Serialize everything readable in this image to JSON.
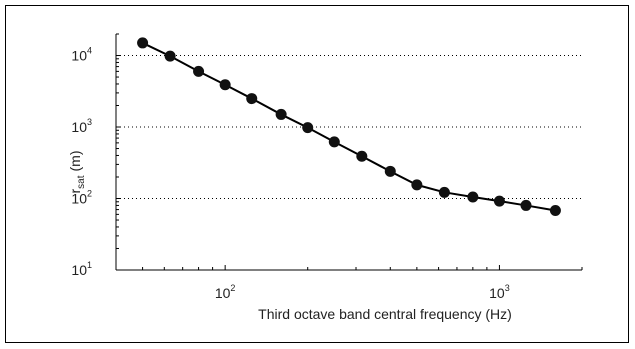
{
  "chart_data": {
    "type": "line",
    "title": "",
    "xlabel": "Third octave band central frequency (Hz)",
    "ylabel_main": "r",
    "ylabel_sub": "sat",
    "ylabel_unit": "(m)",
    "xscale": "log",
    "yscale": "log",
    "xlim": [
      40,
      2000
    ],
    "ylim": [
      10,
      20000
    ],
    "grid": "horizontal dotted",
    "x_ticks": [
      {
        "base": "10",
        "exp": "2",
        "value": 100
      },
      {
        "base": "10",
        "exp": "3",
        "value": 1000
      }
    ],
    "y_ticks": [
      {
        "base": "10",
        "exp": "1",
        "value": 10
      },
      {
        "base": "10",
        "exp": "2",
        "value": 100
      },
      {
        "base": "10",
        "exp": "3",
        "value": 1000
      },
      {
        "base": "10",
        "exp": "4",
        "value": 10000
      }
    ],
    "series": [
      {
        "x": [
          50,
          63,
          80,
          100,
          125,
          160,
          200,
          250,
          315,
          400,
          500,
          630,
          800,
          1000,
          1250,
          1600
        ],
        "y": [
          15000,
          9800,
          6000,
          3900,
          2500,
          1500,
          980,
          620,
          390,
          240,
          155,
          122,
          105,
          92,
          80,
          68
        ]
      }
    ],
    "colors": {
      "line": "#000000",
      "marker": "#111111",
      "grid": "#000000"
    }
  }
}
